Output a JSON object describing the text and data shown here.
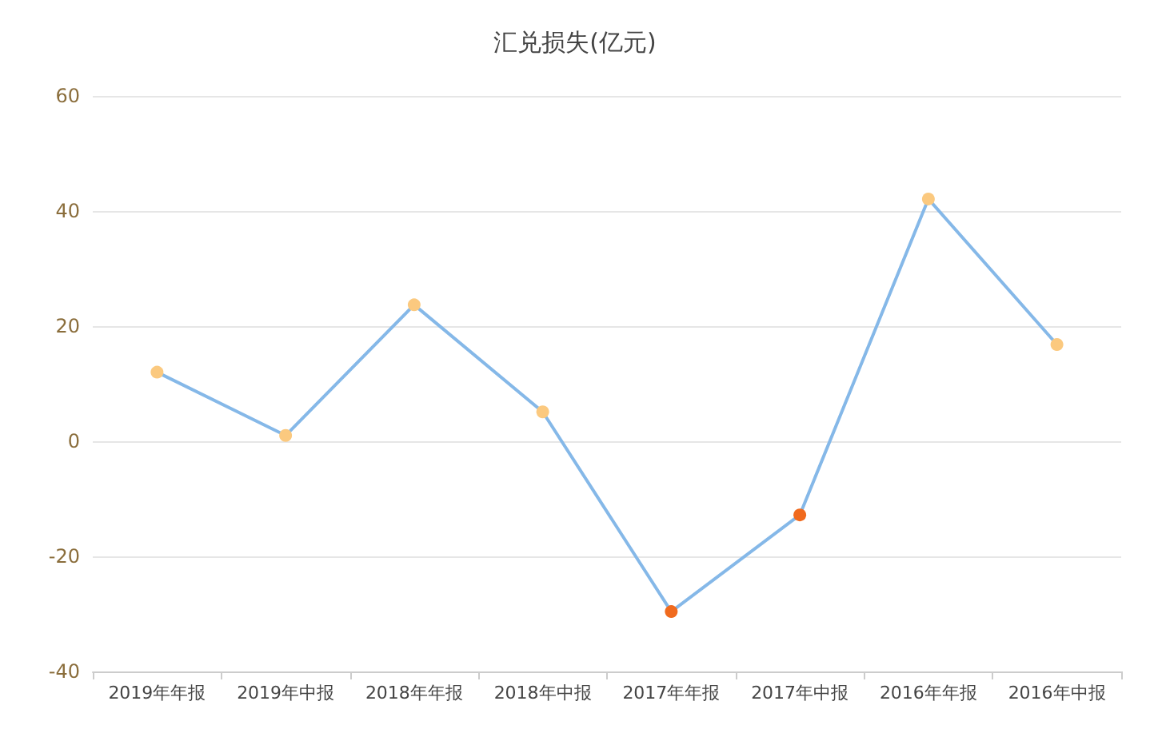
{
  "chart_data": {
    "type": "line",
    "title": "汇兑损失(亿元)",
    "categories": [
      "2019年年报",
      "2019年中报",
      "2018年年报",
      "2018年中报",
      "2017年年报",
      "2017年中报",
      "2016年年报",
      "2016年中报"
    ],
    "series": [
      {
        "color": "#85b8e8",
        "colors": [
          "#fbc97f",
          "#fbc97f",
          "#fbc97f",
          "#fbc97f",
          "#f06a1e",
          "#f06a1e",
          "#fbc97f",
          "#fbc97f"
        ],
        "values": [
          12,
          1,
          23.7,
          5.1,
          -29.6,
          -12.8,
          42.1,
          16.8
        ]
      }
    ],
    "ylim": [
      -40,
      60
    ],
    "yticks": [
      -40,
      -20,
      0,
      20,
      40,
      60
    ],
    "grid": "y",
    "marker": "circle",
    "line_style": "solid"
  }
}
